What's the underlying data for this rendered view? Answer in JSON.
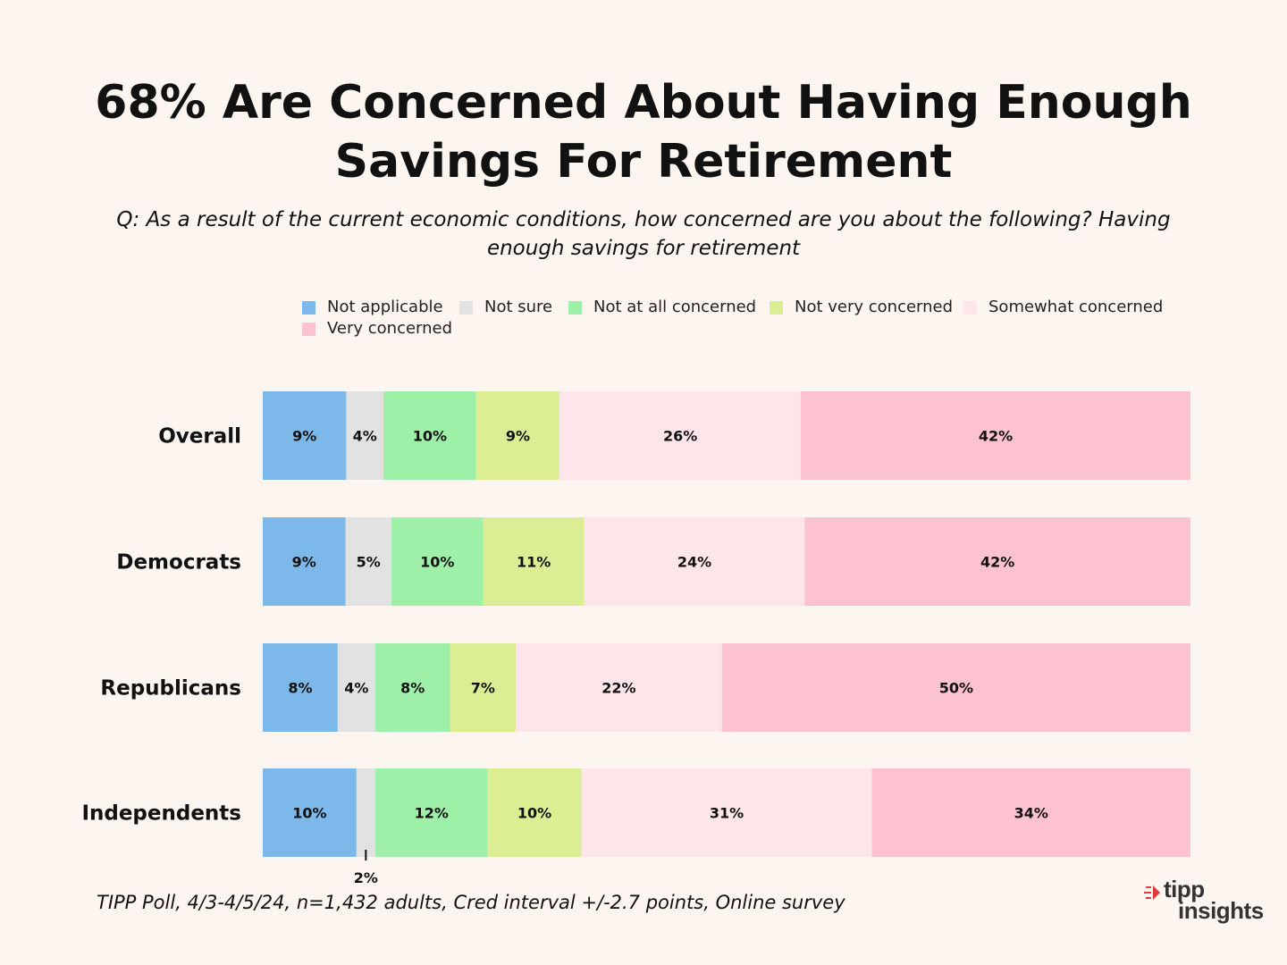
{
  "header": {
    "title_line1": "68% Are Concerned About Having Enough",
    "title_line2": "Savings For Retirement",
    "subtitle_line1": "Q: As a result of the current economic conditions, how concerned are you about the following?  Having",
    "subtitle_line2": "enough savings for retirement"
  },
  "footer": {
    "note": "TIPP Poll, 4/3-4/5/24, n=1,432 adults, Cred interval +/-2.7 points, Online survey",
    "logo_line1": "tipp",
    "logo_line2": "insights"
  },
  "chart_data": {
    "type": "bar",
    "orientation": "horizontal",
    "stacked": true,
    "normalized": true,
    "title": "68% Are Concerned About Having Enough Savings For Retirement",
    "legend_position": "top",
    "grid": false,
    "categories": [
      "Overall",
      "Democrats",
      "Republicans",
      "Independents"
    ],
    "series": [
      {
        "name": "Not applicable",
        "color": "#7cb8ea",
        "values": [
          9,
          9,
          8,
          10
        ]
      },
      {
        "name": "Not sure",
        "color": "#e2e2e2",
        "values": [
          4,
          5,
          4,
          2
        ]
      },
      {
        "name": "Not at all concerned",
        "color": "#9ef0a8",
        "values": [
          10,
          10,
          8,
          12
        ]
      },
      {
        "name": "Not very concerned",
        "color": "#dcee94",
        "values": [
          9,
          11,
          7,
          10
        ]
      },
      {
        "name": "Somewhat concerned",
        "color": "#fde5ea",
        "values": [
          26,
          24,
          22,
          31
        ]
      },
      {
        "name": "Very concerned",
        "color": "#fdc2d0",
        "values": [
          42,
          42,
          50,
          34
        ]
      }
    ]
  }
}
